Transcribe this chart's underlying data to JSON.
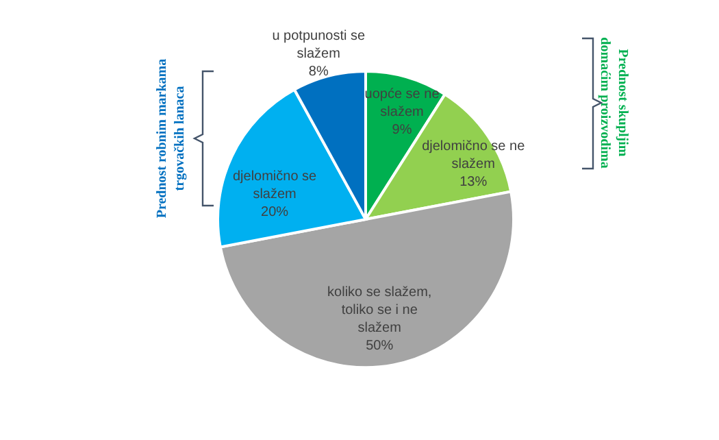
{
  "chart_data": {
    "type": "pie",
    "categories": [
      "uopće se ne slažem",
      "djelomično se ne slažem",
      "koliko se slažem, toliko se i ne slažem",
      "djelomično se slažem",
      "u potpunosti se slažem"
    ],
    "values": [
      9,
      13,
      50,
      20,
      8
    ],
    "value_labels": [
      "9%",
      "13%",
      "50%",
      "20%",
      "8%"
    ],
    "colors": [
      "#00b050",
      "#92d050",
      "#a5a5a5",
      "#00b0f0",
      "#0070c0"
    ],
    "annotations": [
      "Prednost robnim markama trgovačkih lanaca",
      "Prednost skupljim domaćim proizvodima"
    ]
  }
}
